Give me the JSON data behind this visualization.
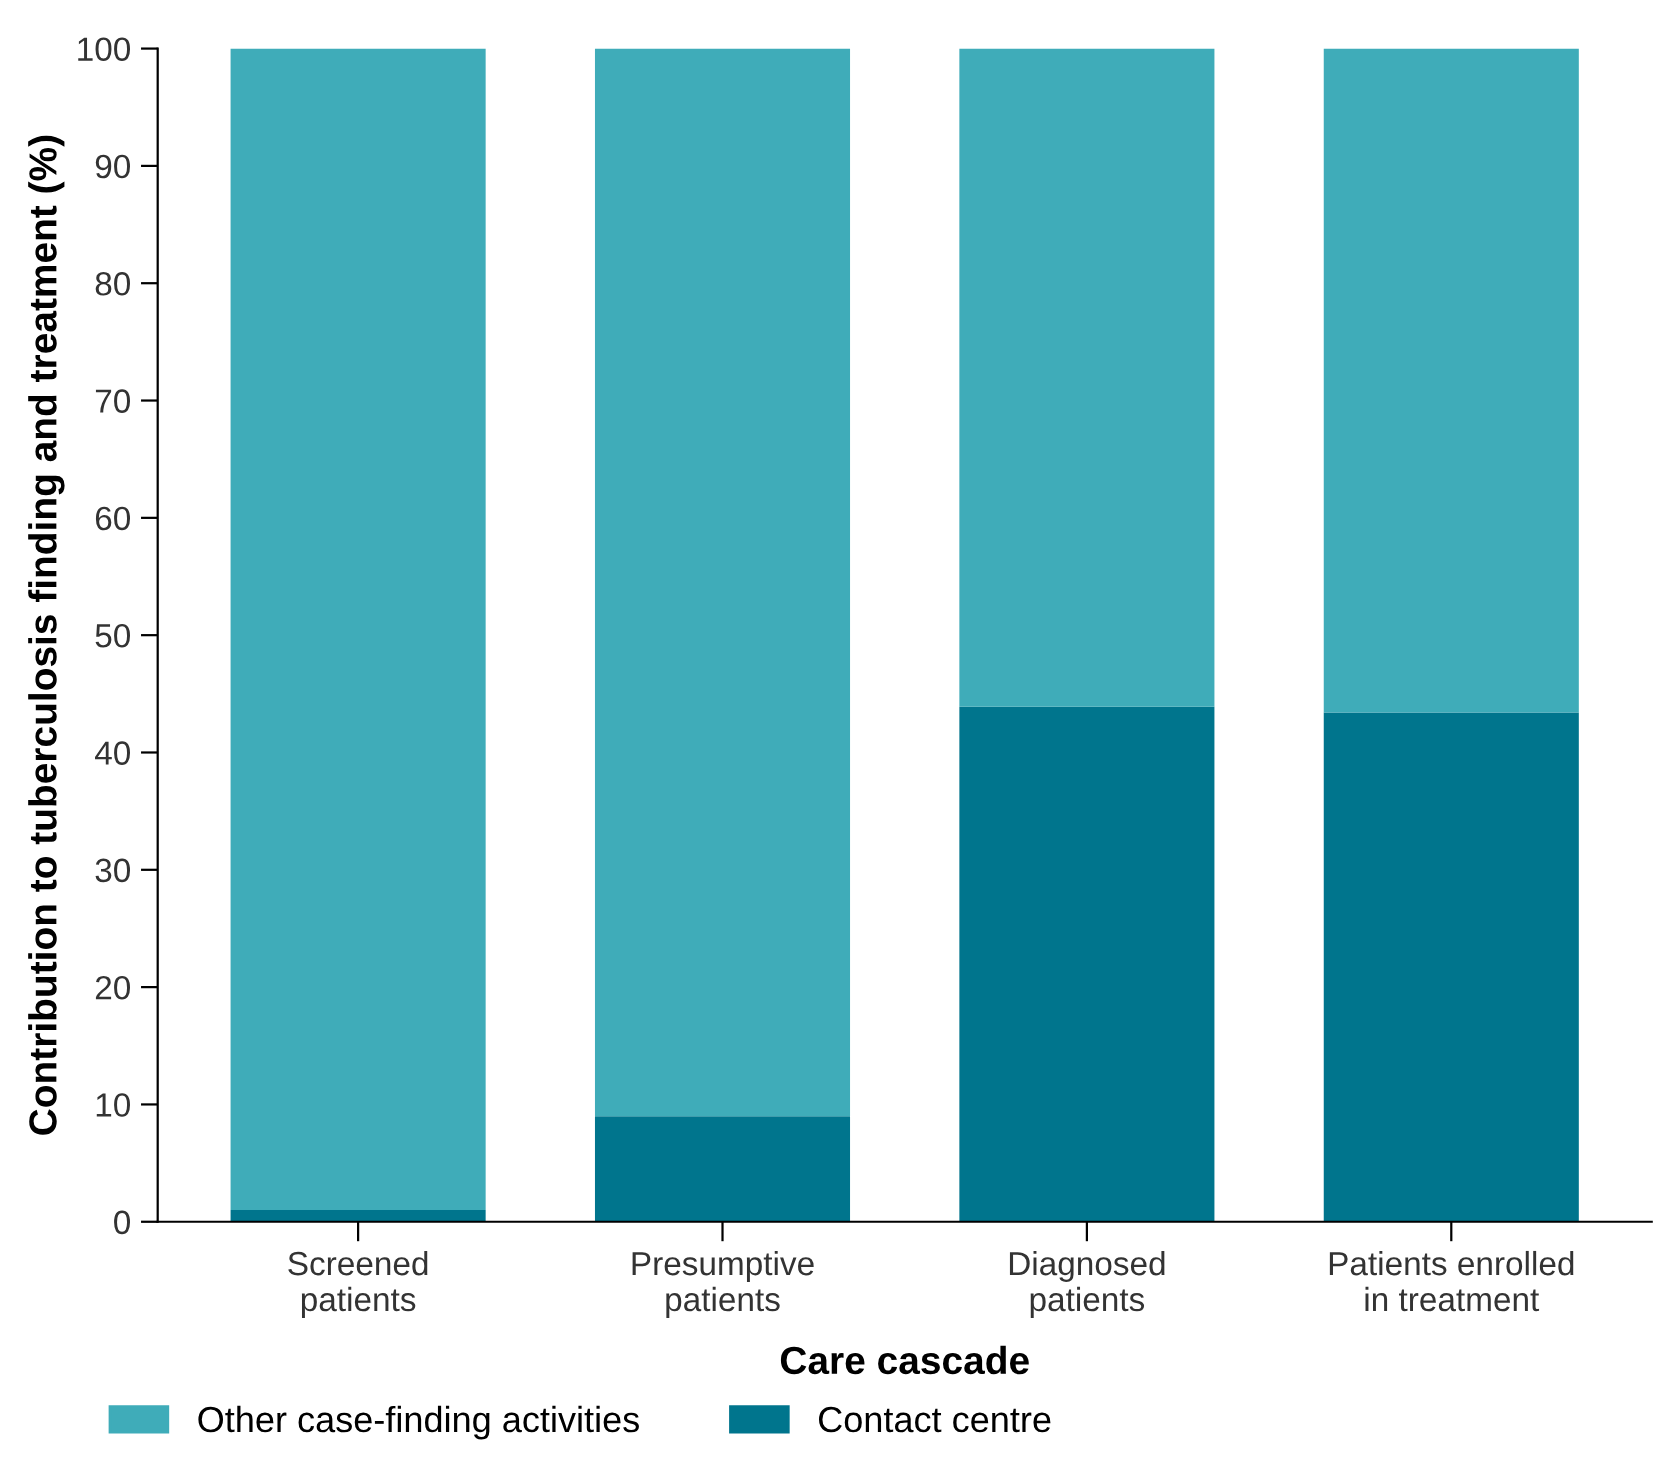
{
  "chart_data": {
    "type": "bar",
    "stacked": true,
    "xlabel": "Care cascade",
    "ylabel": "Contribution to tuberculosis finding and treatment (%)",
    "categories": [
      "Screened\npatients",
      "Presumptive\npatients",
      "Diagnosed\npatients",
      "Patients enrolled\nin treatment"
    ],
    "series": [
      {
        "name": "Contact centre",
        "color": "#00758d",
        "values": [
          1.0,
          9.0,
          43.9,
          43.4
        ]
      },
      {
        "name": "Other case-finding activities",
        "color": "#3facb9",
        "values": [
          99.0,
          91.0,
          56.1,
          56.6
        ]
      }
    ],
    "ylim": [
      0,
      100
    ],
    "yticks": [
      0,
      10,
      20,
      30,
      40,
      50,
      60,
      70,
      80,
      90,
      100
    ],
    "grid": false,
    "legend": "bottom"
  }
}
